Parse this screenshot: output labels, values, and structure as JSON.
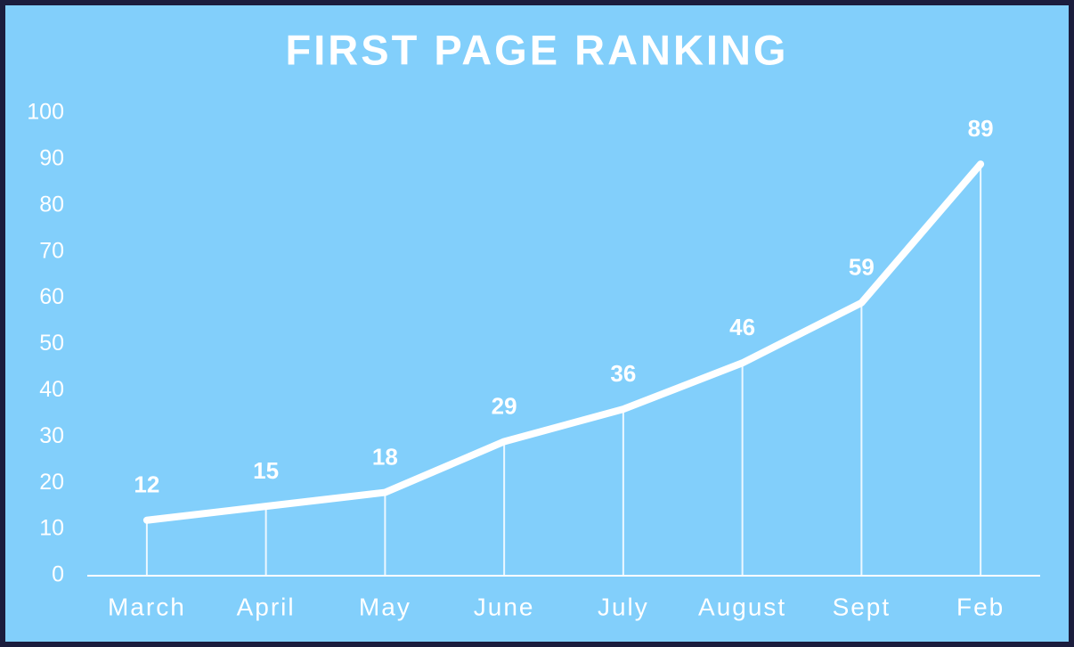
{
  "chart_data": {
    "type": "line",
    "title": "FIRST PAGE RANKING",
    "categories": [
      "March",
      "April",
      "May",
      "June",
      "July",
      "August",
      "Sept",
      "Feb"
    ],
    "values": [
      12,
      15,
      18,
      29,
      36,
      46,
      59,
      89
    ],
    "color": "#ffffff",
    "ylim": [
      0,
      100
    ],
    "yticks": [
      0,
      10,
      20,
      30,
      40,
      50,
      60,
      70,
      80,
      90,
      100
    ],
    "grid": false,
    "drop_lines": true,
    "data_labels": true
  }
}
